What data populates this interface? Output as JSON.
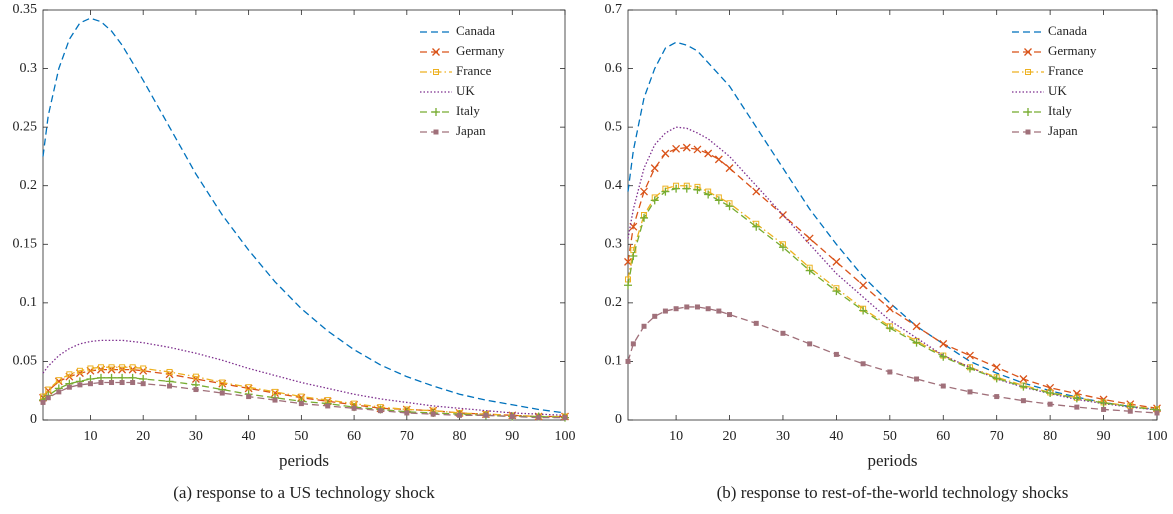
{
  "chart_data": [
    {
      "type": "line",
      "xlabel": "periods",
      "caption": "(a) response to a US technology shock",
      "x": [
        1,
        2,
        4,
        6,
        8,
        10,
        12,
        14,
        16,
        18,
        20,
        25,
        30,
        35,
        40,
        45,
        50,
        55,
        60,
        65,
        70,
        75,
        80,
        85,
        90,
        95,
        100
      ],
      "xlim": [
        1,
        100
      ],
      "xticks": [
        10,
        20,
        30,
        40,
        50,
        60,
        70,
        80,
        90,
        100
      ],
      "ylim": [
        0,
        0.35
      ],
      "yticks": [
        0,
        0.05,
        0.1,
        0.15,
        0.2,
        0.25,
        0.3,
        0.35
      ],
      "legend": "upper right",
      "series": [
        {
          "name": "Canada",
          "color": "#0072BD",
          "dash": "dashed",
          "marker": "none",
          "values": [
            0.225,
            0.26,
            0.3,
            0.325,
            0.339,
            0.343,
            0.34,
            0.332,
            0.32,
            0.305,
            0.29,
            0.25,
            0.21,
            0.175,
            0.145,
            0.118,
            0.095,
            0.076,
            0.06,
            0.047,
            0.037,
            0.029,
            0.022,
            0.017,
            0.013,
            0.009,
            0.006
          ]
        },
        {
          "name": "Germany",
          "color": "#D95319",
          "dash": "dashed",
          "marker": "x",
          "values": [
            0.019,
            0.025,
            0.033,
            0.037,
            0.04,
            0.042,
            0.043,
            0.043,
            0.043,
            0.043,
            0.042,
            0.039,
            0.035,
            0.031,
            0.027,
            0.023,
            0.019,
            0.016,
            0.013,
            0.01,
            0.009,
            0.008,
            0.006,
            0.005,
            0.004,
            0.003,
            0.003
          ]
        },
        {
          "name": "France",
          "color": "#EDB120",
          "dash": "dashdot",
          "marker": "square",
          "values": [
            0.02,
            0.026,
            0.034,
            0.039,
            0.042,
            0.044,
            0.045,
            0.045,
            0.045,
            0.045,
            0.044,
            0.041,
            0.037,
            0.032,
            0.028,
            0.024,
            0.02,
            0.017,
            0.014,
            0.011,
            0.009,
            0.008,
            0.006,
            0.005,
            0.004,
            0.003,
            0.003
          ]
        },
        {
          "name": "UK",
          "color": "#7E2F8E",
          "dash": "dotted",
          "marker": "none",
          "values": [
            0.04,
            0.046,
            0.055,
            0.061,
            0.065,
            0.067,
            0.068,
            0.068,
            0.068,
            0.067,
            0.066,
            0.062,
            0.057,
            0.051,
            0.044,
            0.038,
            0.032,
            0.027,
            0.022,
            0.018,
            0.015,
            0.012,
            0.01,
            0.008,
            0.006,
            0.005,
            0.004
          ]
        },
        {
          "name": "Italy",
          "color": "#77AC30",
          "dash": "dashed",
          "marker": "plus",
          "values": [
            0.017,
            0.021,
            0.027,
            0.031,
            0.033,
            0.035,
            0.036,
            0.036,
            0.036,
            0.036,
            0.035,
            0.033,
            0.03,
            0.026,
            0.022,
            0.019,
            0.016,
            0.014,
            0.011,
            0.009,
            0.007,
            0.006,
            0.005,
            0.004,
            0.003,
            0.003,
            0.002
          ]
        },
        {
          "name": "Japan",
          "color": "#A0707A",
          "dash": "dashed",
          "marker": "filled-square",
          "values": [
            0.015,
            0.019,
            0.024,
            0.028,
            0.03,
            0.031,
            0.032,
            0.032,
            0.032,
            0.032,
            0.031,
            0.029,
            0.026,
            0.023,
            0.02,
            0.017,
            0.014,
            0.012,
            0.01,
            0.008,
            0.006,
            0.005,
            0.004,
            0.004,
            0.003,
            0.002,
            0.002
          ]
        }
      ]
    },
    {
      "type": "line",
      "xlabel": "periods",
      "caption": "(b) response to rest-of-the-world technology shocks",
      "x": [
        1,
        2,
        4,
        6,
        8,
        10,
        12,
        14,
        16,
        18,
        20,
        25,
        30,
        35,
        40,
        45,
        50,
        55,
        60,
        65,
        70,
        75,
        80,
        85,
        90,
        95,
        100
      ],
      "xlim": [
        1,
        100
      ],
      "xticks": [
        10,
        20,
        30,
        40,
        50,
        60,
        70,
        80,
        90,
        100
      ],
      "ylim": [
        0,
        0.7
      ],
      "yticks": [
        0,
        0.1,
        0.2,
        0.3,
        0.4,
        0.5,
        0.6,
        0.7
      ],
      "legend": "upper right",
      "series": [
        {
          "name": "Canada",
          "color": "#0072BD",
          "dash": "dashed",
          "marker": "none",
          "values": [
            0.39,
            0.46,
            0.55,
            0.6,
            0.635,
            0.645,
            0.64,
            0.63,
            0.61,
            0.59,
            0.57,
            0.5,
            0.43,
            0.36,
            0.3,
            0.245,
            0.2,
            0.16,
            0.13,
            0.1,
            0.08,
            0.063,
            0.05,
            0.039,
            0.03,
            0.023,
            0.018
          ]
        },
        {
          "name": "Germany",
          "color": "#D95319",
          "dash": "dashed",
          "marker": "x",
          "values": [
            0.27,
            0.33,
            0.39,
            0.43,
            0.455,
            0.463,
            0.465,
            0.462,
            0.455,
            0.445,
            0.43,
            0.39,
            0.35,
            0.31,
            0.27,
            0.23,
            0.19,
            0.16,
            0.13,
            0.11,
            0.09,
            0.07,
            0.055,
            0.045,
            0.035,
            0.027,
            0.02
          ]
        },
        {
          "name": "France",
          "color": "#EDB120",
          "dash": "dashdot",
          "marker": "square",
          "values": [
            0.24,
            0.29,
            0.35,
            0.38,
            0.395,
            0.4,
            0.4,
            0.398,
            0.39,
            0.38,
            0.37,
            0.335,
            0.3,
            0.26,
            0.225,
            0.19,
            0.16,
            0.135,
            0.11,
            0.09,
            0.073,
            0.059,
            0.047,
            0.038,
            0.03,
            0.024,
            0.018
          ]
        },
        {
          "name": "UK",
          "color": "#7E2F8E",
          "dash": "dotted",
          "marker": "none",
          "values": [
            0.31,
            0.36,
            0.43,
            0.47,
            0.49,
            0.5,
            0.498,
            0.49,
            0.48,
            0.465,
            0.45,
            0.4,
            0.35,
            0.3,
            0.25,
            0.21,
            0.17,
            0.14,
            0.11,
            0.09,
            0.07,
            0.056,
            0.045,
            0.035,
            0.028,
            0.022,
            0.017
          ]
        },
        {
          "name": "Italy",
          "color": "#77AC30",
          "dash": "dashed",
          "marker": "plus",
          "values": [
            0.23,
            0.28,
            0.345,
            0.375,
            0.39,
            0.395,
            0.395,
            0.393,
            0.385,
            0.375,
            0.365,
            0.33,
            0.295,
            0.255,
            0.22,
            0.187,
            0.157,
            0.132,
            0.108,
            0.088,
            0.071,
            0.057,
            0.046,
            0.037,
            0.029,
            0.023,
            0.017
          ]
        },
        {
          "name": "Japan",
          "color": "#A0707A",
          "dash": "dashed",
          "marker": "filled-square",
          "values": [
            0.1,
            0.13,
            0.16,
            0.177,
            0.186,
            0.19,
            0.193,
            0.193,
            0.19,
            0.186,
            0.18,
            0.165,
            0.148,
            0.13,
            0.112,
            0.096,
            0.082,
            0.07,
            0.058,
            0.048,
            0.04,
            0.033,
            0.027,
            0.022,
            0.018,
            0.015,
            0.012
          ]
        }
      ]
    }
  ]
}
